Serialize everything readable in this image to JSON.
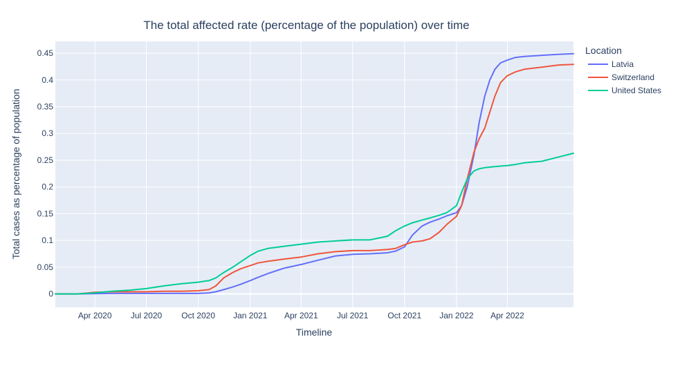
{
  "chart_data": {
    "type": "line",
    "title": "The total affected rate (percentage of the population) over time",
    "xlabel": "Timeline",
    "ylabel": "Total cases as percentage of population",
    "x_tick_labels": [
      "Apr 2020",
      "Jul 2020",
      "Oct 2020",
      "Jan 2021",
      "Apr 2021",
      "Jul 2021",
      "Oct 2021",
      "Jan 2022",
      "Apr 2022"
    ],
    "x_tick_dates": [
      "2020-04-01",
      "2020-07-01",
      "2020-10-01",
      "2021-01-01",
      "2021-04-01",
      "2021-07-01",
      "2021-10-01",
      "2022-01-01",
      "2022-04-01"
    ],
    "xlim": [
      "2020-01-22",
      "2022-07-27"
    ],
    "y_ticks": [
      0,
      0.05,
      0.1,
      0.15,
      0.2,
      0.25,
      0.3,
      0.35,
      0.4,
      0.45
    ],
    "y_tick_labels": [
      "0",
      "0.05",
      "0.1",
      "0.15",
      "0.2",
      "0.25",
      "0.3",
      "0.35",
      "0.4",
      "0.45"
    ],
    "ylim": [
      -0.025,
      0.472
    ],
    "grid": true,
    "legend": {
      "title": "Location",
      "placement": "right"
    },
    "x": [
      "2020-01-22",
      "2020-03-01",
      "2020-04-01",
      "2020-05-01",
      "2020-06-01",
      "2020-07-01",
      "2020-08-01",
      "2020-09-01",
      "2020-10-01",
      "2020-10-20",
      "2020-11-01",
      "2020-11-15",
      "2020-12-01",
      "2020-12-15",
      "2021-01-01",
      "2021-01-15",
      "2021-02-01",
      "2021-03-01",
      "2021-04-01",
      "2021-05-01",
      "2021-06-01",
      "2021-07-01",
      "2021-08-01",
      "2021-09-01",
      "2021-09-15",
      "2021-10-01",
      "2021-10-15",
      "2021-11-01",
      "2021-11-15",
      "2021-12-01",
      "2021-12-15",
      "2022-01-01",
      "2022-01-10",
      "2022-01-20",
      "2022-02-01",
      "2022-02-10",
      "2022-02-20",
      "2022-03-01",
      "2022-03-10",
      "2022-03-20",
      "2022-04-01",
      "2022-04-15",
      "2022-05-01",
      "2022-06-01",
      "2022-07-01",
      "2022-07-27"
    ],
    "series": [
      {
        "name": "Latvia",
        "color": "#636efa",
        "values": [
          0,
          0,
          0.0005,
          0.001,
          0.001,
          0.001,
          0.001,
          0.001,
          0.001,
          0.002,
          0.004,
          0.008,
          0.013,
          0.018,
          0.025,
          0.031,
          0.038,
          0.048,
          0.055,
          0.063,
          0.071,
          0.074,
          0.075,
          0.077,
          0.08,
          0.088,
          0.11,
          0.127,
          0.134,
          0.14,
          0.146,
          0.152,
          0.165,
          0.2,
          0.26,
          0.32,
          0.37,
          0.4,
          0.42,
          0.432,
          0.437,
          0.442,
          0.444,
          0.446,
          0.448,
          0.449
        ]
      },
      {
        "name": "Switzerland",
        "color": "#ef553b",
        "values": [
          0,
          0,
          0.003,
          0.004,
          0.004,
          0.004,
          0.005,
          0.005,
          0.006,
          0.008,
          0.015,
          0.03,
          0.04,
          0.047,
          0.053,
          0.058,
          0.061,
          0.065,
          0.069,
          0.075,
          0.079,
          0.081,
          0.081,
          0.083,
          0.085,
          0.092,
          0.097,
          0.099,
          0.103,
          0.115,
          0.13,
          0.145,
          0.165,
          0.215,
          0.265,
          0.29,
          0.31,
          0.34,
          0.37,
          0.395,
          0.408,
          0.415,
          0.42,
          0.424,
          0.428,
          0.429
        ]
      },
      {
        "name": "United States",
        "color": "#00cc96",
        "values": [
          0,
          0,
          0.002,
          0.005,
          0.007,
          0.01,
          0.015,
          0.019,
          0.022,
          0.025,
          0.03,
          0.04,
          0.05,
          0.06,
          0.072,
          0.08,
          0.085,
          0.089,
          0.093,
          0.097,
          0.099,
          0.101,
          0.101,
          0.108,
          0.118,
          0.127,
          0.133,
          0.138,
          0.142,
          0.147,
          0.152,
          0.165,
          0.19,
          0.215,
          0.23,
          0.234,
          0.236,
          0.237,
          0.238,
          0.239,
          0.24,
          0.242,
          0.245,
          0.248,
          0.256,
          0.263
        ]
      }
    ]
  }
}
